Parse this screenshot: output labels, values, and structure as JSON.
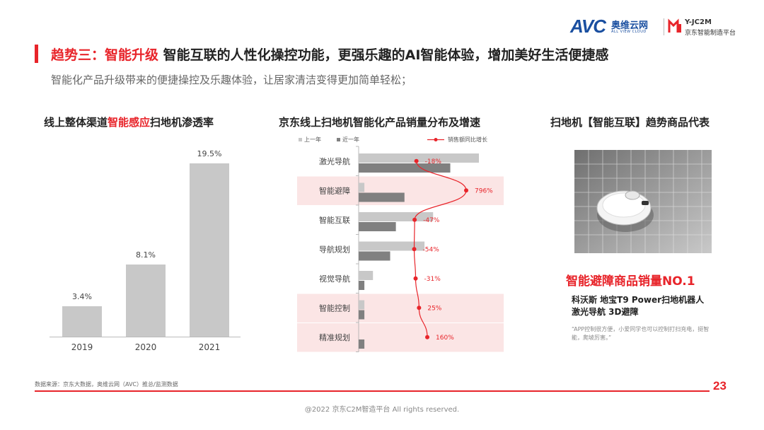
{
  "header": {
    "avc_word": "AVC",
    "avc_cn": "奥维云网",
    "avc_en": "ALL VIEW CLOUD",
    "jd_t1": "Y-JC2M",
    "jd_t2": "京东智能制造平台"
  },
  "title": {
    "prefix": "趋势三：智能升级",
    "rest": " 智能互联的人性化操控功能，更强乐趣的AI智能体验，增加美好生活便捷感"
  },
  "subtitle": "智能化产品升级带来的便捷操控及乐趣体验，让居家清洁变得更加简单轻松；",
  "left": {
    "title_a": "线上整体渠道",
    "title_hl": "智能感应",
    "title_b": "扫地机渗透率"
  },
  "middle": {
    "title": "京东线上扫地机智能化产品销量分布及增速",
    "legend": [
      "上一年",
      "近一年",
      "销售额同比增长"
    ]
  },
  "right": {
    "title": "扫地机【智能互联】趋势商品代表",
    "headline": "智能避障商品销量NO.1",
    "product_line1": "科沃斯 地宝T9 Power扫地机器人",
    "product_line2": "激光导航 3D避障",
    "quote": "“APP控制很方便，小爱同学也可以控制打扫充电，挺智能，爬坡厉害。”"
  },
  "chart_data": [
    {
      "type": "bar",
      "title": "线上整体渠道智能感应扫地机渗透率",
      "categories": [
        "2019",
        "2020",
        "2021"
      ],
      "values": [
        3.4,
        8.1,
        19.5
      ],
      "value_labels": [
        "3.4%",
        "8.1%",
        "19.5%"
      ],
      "ylim": [
        0,
        22
      ],
      "color": "#c8c8c8"
    },
    {
      "type": "bar",
      "orientation": "horizontal",
      "title": "京东线上扫地机智能化产品销量分布及增速",
      "categories": [
        "激光导航",
        "智能避障",
        "智能互联",
        "导航规划",
        "视觉导航",
        "智能控制",
        "精准规划"
      ],
      "series": [
        {
          "name": "上一年",
          "color": "#c8c8c8",
          "values": [
            42,
            2,
            26,
            23,
            5,
            2,
            0
          ]
        },
        {
          "name": "近一年",
          "color": "#808080",
          "values": [
            32,
            16,
            13,
            11,
            2,
            2,
            2
          ]
        },
        {
          "name": "销售额同比增长",
          "type": "line",
          "color": "#e8242a",
          "values": [
            -18,
            796,
            -47,
            -54,
            -31,
            25,
            160
          ],
          "labels": [
            "-18%",
            "796%",
            "-47%",
            "-54%",
            "-31%",
            "25%",
            "160%"
          ]
        }
      ],
      "highlighted_categories": [
        "智能避障",
        "智能控制",
        "精准规划"
      ],
      "highlight_color": "#fbe5e5"
    }
  ],
  "footer": {
    "source": "数据来源：京东大数据，奥维云网（AVC）推总/监测数据",
    "page": "23",
    "copyright": "@2022 京东C2M智造平台  All rights reserved."
  }
}
